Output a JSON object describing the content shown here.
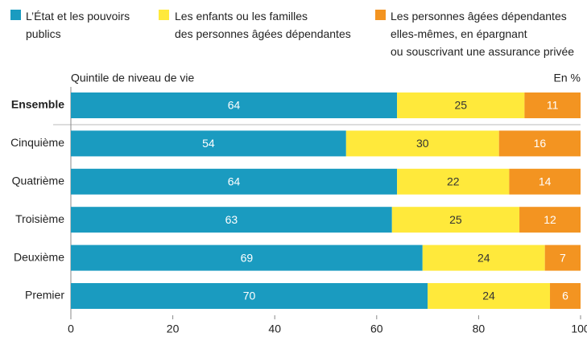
{
  "chart_data": {
    "type": "stacked-bar-horizontal",
    "x_label": "Quintile de niveau de vie",
    "unit_label": "En %",
    "categories": [
      "Ensemble",
      "Cinquième",
      "Quatrième",
      "Troisième",
      "Deuxième",
      "Premier"
    ],
    "series": [
      {
        "name": "L’État et les pouvoirs\npublics",
        "color": "#1a9bc0",
        "label_color": "#ffffff",
        "values": [
          64,
          54,
          64,
          63,
          69,
          70
        ]
      },
      {
        "name": "Les enfants ou les familles\ndes personnes âgées dépendantes",
        "color": "#ffe93b",
        "label_color": "#333333",
        "values": [
          25,
          30,
          22,
          25,
          24,
          24
        ]
      },
      {
        "name": "Les personnes âgées dépendantes\nelles-mêmes, en épargnant\nou souscrivant une assurance privée",
        "color": "#f39421",
        "label_color": "#ffffff",
        "values": [
          11,
          16,
          14,
          12,
          7,
          6
        ]
      }
    ],
    "xlim": [
      0,
      100
    ],
    "xticks": [
      0,
      20,
      40,
      60,
      80,
      100
    ]
  }
}
